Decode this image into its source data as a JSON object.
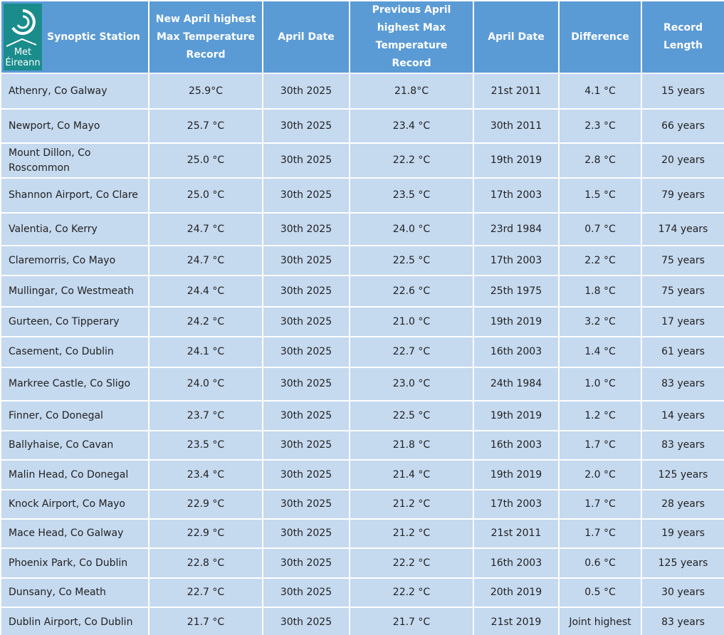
{
  "header": {
    "logo_text": "Met Éireann",
    "columns": [
      "Synoptic Station",
      "New April highest Max Temperature Record",
      "April Date",
      "Previous April highest Max Temperature Record",
      "April Date",
      "Difference",
      "Record Length"
    ]
  },
  "table": {
    "rows": [
      [
        "Athenry, Co Galway",
        "25.9°C",
        "30th 2025",
        "21.8°C",
        "21st 2011",
        "4.1 °C",
        "15 years"
      ],
      [
        "Newport, Co Mayo",
        "25.7 °C",
        "30th 2025",
        "23.4 °C",
        "30th 2011",
        "2.3 °C",
        "66 years"
      ],
      [
        "Mount Dillon, Co Roscommon",
        "25.0 °C",
        "30th 2025",
        "22.2 °C",
        "19th 2019",
        "2.8 °C",
        "20 years"
      ],
      [
        "Shannon Airport, Co Clare",
        "25.0 °C",
        "30th 2025",
        "23.5 °C",
        "17th 2003",
        "1.5 °C",
        "79 years"
      ],
      [
        "Valentia, Co Kerry",
        "24.7 °C",
        "30th 2025",
        "24.0 °C",
        "23rd 1984",
        "0.7 °C",
        "174 years"
      ],
      [
        "Claremorris, Co Mayo",
        "24.7 °C",
        "30th 2025",
        "22.5 °C",
        "17th 2003",
        "2.2 °C",
        "75 years"
      ],
      [
        "Mullingar, Co Westmeath",
        "24.4 °C",
        "30th 2025",
        "22.6 °C",
        "25th 1975",
        "1.8 °C",
        "75 years"
      ],
      [
        "Gurteen, Co Tipperary",
        "24.2 °C",
        "30th 2025",
        "21.0 °C",
        "19th 2019",
        "3.2 °C",
        "17 years"
      ],
      [
        "Casement, Co Dublin",
        "24.1 °C",
        "30th 2025",
        "22.7 °C",
        "16th 2003",
        "1.4 °C",
        "61 years"
      ],
      [
        "Markree Castle, Co Sligo",
        "24.0 °C",
        "30th 2025",
        "23.0 °C",
        "24th 1984",
        "1.0 °C",
        "83 years"
      ],
      [
        "Finner, Co Donegal",
        "23.7 °C",
        "30th 2025",
        "22.5 °C",
        "19th 2019",
        "1.2 °C",
        "14 years"
      ],
      [
        "Ballyhaise, Co Cavan",
        "23.5 °C",
        "30th 2025",
        "21.8 °C",
        "16th 2003",
        "1.7 °C",
        "83 years"
      ],
      [
        "Malin Head, Co Donegal",
        "23.4 °C",
        "30th 2025",
        "21.4 °C",
        "19th 2019",
        "2.0 °C",
        "125 years"
      ],
      [
        "Knock Airport, Co Mayo",
        "22.9 °C",
        "30th 2025",
        "21.2 °C",
        "17th 2003",
        "1.7 °C",
        "28 years"
      ],
      [
        "Mace Head, Co Galway",
        "22.9 °C",
        "30th 2025",
        "21.2 °C",
        "21st 2011",
        "1.7 °C",
        "19 years"
      ],
      [
        "Phoenix Park, Co Dublin",
        "22.8 °C",
        "30th 2025",
        "22.2 °C",
        "16th 2003",
        "0.6 °C",
        "125 years"
      ],
      [
        "Dunsany, Co Meath",
        "22.7 °C",
        "30th 2025",
        "22.2 °C",
        "20th 2019",
        "0.5 °C",
        "30 years"
      ],
      [
        "Dublin Airport, Co Dublin",
        "21.7 °C",
        "30th 2025",
        "21.7 °C",
        "21st 2019",
        "Joint highest",
        "83 years"
      ]
    ]
  }
}
